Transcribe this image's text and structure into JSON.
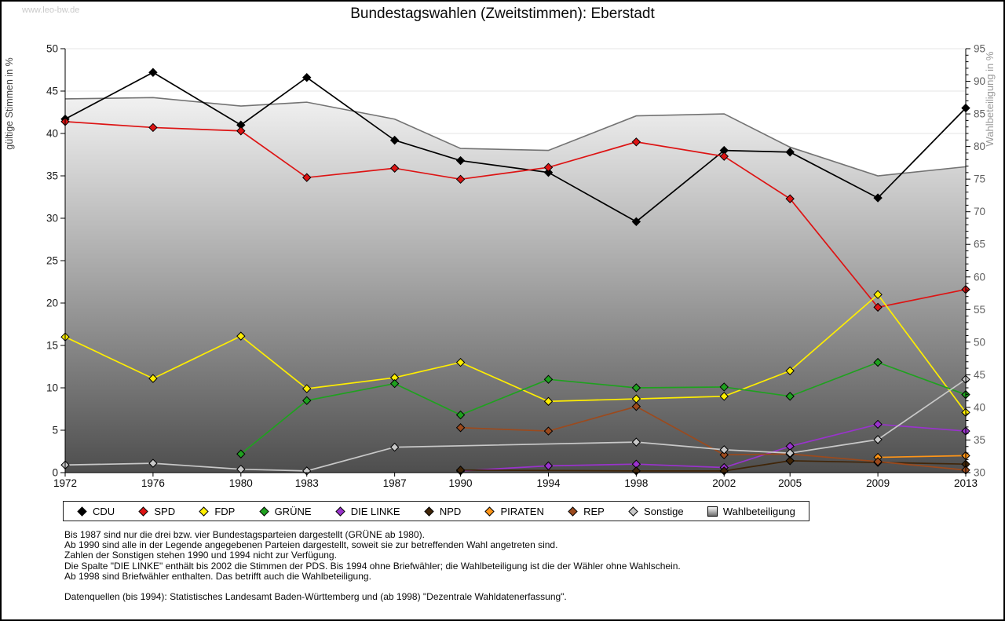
{
  "watermark": "www.leo-bw.de",
  "title": "Bundestagswahlen (Zweitstimmen): Eberstadt",
  "chart_data": {
    "type": "line",
    "x": [
      1972,
      1976,
      1980,
      1983,
      1987,
      1990,
      1994,
      1998,
      2002,
      2005,
      2009,
      2013
    ],
    "left_axis": {
      "label": "gültige Stimmen in %",
      "min": 0,
      "max": 50,
      "tick_step": 5
    },
    "right_axis": {
      "label": "Wahlbeteiligung in %",
      "min": 30,
      "max": 95,
      "tick_step": 5,
      "minor_step": 1
    },
    "grid": true,
    "legend_position": "bottom",
    "series": [
      {
        "name": "CDU",
        "axis": "left",
        "color": "#000000",
        "marker": "diamond",
        "values": [
          41.7,
          47.2,
          41.0,
          46.6,
          39.2,
          36.8,
          35.4,
          29.6,
          38.0,
          37.8,
          32.4,
          43.0
        ]
      },
      {
        "name": "SPD",
        "axis": "left",
        "color": "#dd1414",
        "marker": "diamond",
        "values": [
          41.4,
          40.7,
          40.3,
          34.8,
          35.9,
          34.6,
          36.0,
          39.0,
          37.3,
          32.3,
          19.5,
          21.6
        ]
      },
      {
        "name": "FDP",
        "axis": "left",
        "color": "#ffee00",
        "marker": "diamond",
        "values": [
          16.0,
          11.1,
          16.1,
          9.9,
          11.2,
          13.0,
          8.4,
          8.7,
          9.0,
          12.0,
          21.0,
          7.1
        ]
      },
      {
        "name": "GRÜNE",
        "axis": "left",
        "color": "#1fa11f",
        "marker": "diamond",
        "values": [
          null,
          null,
          2.2,
          8.5,
          10.5,
          6.8,
          11.0,
          10.0,
          10.1,
          9.0,
          13.0,
          9.2
        ]
      },
      {
        "name": "DIE LINKE",
        "axis": "left",
        "color": "#9933cc",
        "marker": "diamond",
        "values": [
          null,
          null,
          null,
          null,
          null,
          0.2,
          0.8,
          1.0,
          0.6,
          3.1,
          5.7,
          4.9
        ]
      },
      {
        "name": "NPD",
        "axis": "left",
        "color": "#402508",
        "marker": "diamond",
        "values": [
          null,
          null,
          null,
          null,
          null,
          0.3,
          null,
          0.2,
          0.2,
          1.4,
          1.2,
          1.0
        ]
      },
      {
        "name": "PIRATEN",
        "axis": "left",
        "color": "#ff9517",
        "marker": "diamond",
        "values": [
          null,
          null,
          null,
          null,
          null,
          null,
          null,
          null,
          null,
          null,
          1.8,
          2.0
        ]
      },
      {
        "name": "REP",
        "axis": "left",
        "color": "#9c4a1d",
        "marker": "diamond",
        "values": [
          null,
          null,
          null,
          null,
          null,
          5.3,
          4.9,
          7.8,
          2.1,
          2.2,
          1.3,
          0.3
        ]
      },
      {
        "name": "Sonstige",
        "axis": "left",
        "color": "#c8c8c8",
        "marker": "diamond",
        "values": [
          0.9,
          1.1,
          0.4,
          0.2,
          3.0,
          null,
          null,
          3.6,
          2.7,
          2.3,
          3.9,
          11.0
        ]
      },
      {
        "name": "Wahlbeteiligung",
        "axis": "right",
        "color": "#737373",
        "type": "area",
        "values": [
          87.3,
          87.5,
          86.2,
          86.8,
          84.2,
          79.7,
          79.4,
          84.7,
          85.0,
          79.9,
          75.5,
          76.9
        ]
      }
    ]
  },
  "footnotes": [
    "Bis 1987 sind nur die drei bzw. vier Bundestagsparteien dargestellt (GRÜNE ab 1980).",
    "Ab 1990 sind alle in der Legende angegebenen Parteien dargestellt, soweit sie zur betreffenden Wahl angetreten sind.",
    "Zahlen der Sonstigen stehen 1990 und 1994 nicht zur Verfügung.",
    "Die Spalte \"DIE LINKE\" enthält bis 2002 die Stimmen der PDS. Bis 1994 ohne Briefwähler; die Wahlbeteiligung ist die der Wähler ohne Wahlschein.",
    "Ab 1998 sind Briefwähler enthalten. Das betrifft auch die Wahlbeteiligung."
  ],
  "source": "Datenquellen (bis 1994): Statistisches Landesamt Baden-Württemberg und (ab 1998) \"Dezentrale Wahldatenerfassung\"."
}
